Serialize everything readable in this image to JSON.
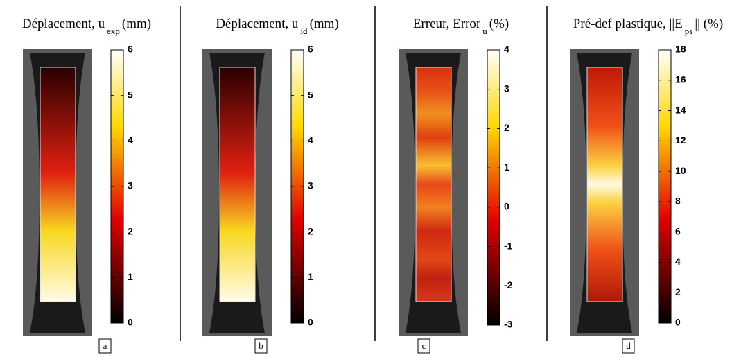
{
  "panels": [
    {
      "title": "Déplacement, u",
      "subscript": "exp",
      "unit": "(mm)",
      "colorbar": {
        "lim": [
          0,
          6
        ],
        "ticks": [
          0,
          1,
          2,
          3,
          4,
          5,
          6
        ]
      },
      "label": "a"
    },
    {
      "title": "Déplacement, u",
      "subscript": "id",
      "unit": "(mm)",
      "colorbar": {
        "lim": [
          0,
          6
        ],
        "ticks": [
          0,
          1,
          2,
          3,
          4,
          5,
          6
        ]
      },
      "label": "b"
    },
    {
      "title": "Erreur, Error",
      "subscript": "u",
      "unit": "(%)",
      "colorbar": {
        "lim": [
          -3,
          4
        ],
        "ticks": [
          -3,
          -2,
          -1,
          0,
          1,
          2,
          3,
          4
        ]
      },
      "label": "c"
    },
    {
      "title": "Pré-def plastique,  ||E",
      "subscript": "ps",
      "unit": "|| (%)",
      "colorbar": {
        "lim": [
          0,
          18
        ],
        "ticks": [
          0,
          2,
          4,
          6,
          8,
          10,
          12,
          14,
          16,
          18
        ]
      },
      "label": "d"
    }
  ]
}
